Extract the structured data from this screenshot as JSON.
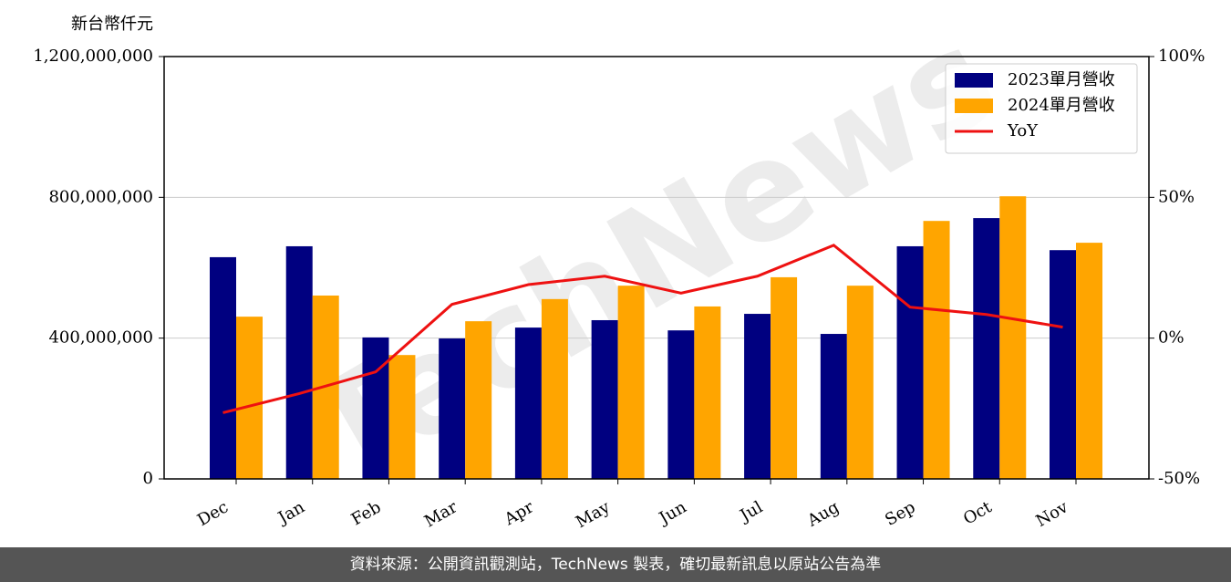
{
  "chart_data": {
    "type": "bar-line",
    "y_label": "新台幣仟元",
    "watermark": "TechNews",
    "footer": "資料來源：公開資訊觀測站，TechNews 製表，確切最新訊息以原站公告為準",
    "categories": [
      "Dec",
      "Jan",
      "Feb",
      "Mar",
      "Apr",
      "May",
      "Jun",
      "Jul",
      "Aug",
      "Sep",
      "Oct",
      "Nov"
    ],
    "series": [
      {
        "name": "2023單月營收",
        "color": "#000080",
        "values": [
          630000000,
          661000000,
          402000000,
          399000000,
          430000000,
          451000000,
          422000000,
          469000000,
          412000000,
          661000000,
          741000000,
          650000000
        ]
      },
      {
        "name": "2024單月營收",
        "color": "#ffa500",
        "values": [
          461000000,
          521000000,
          352000000,
          448000000,
          511000000,
          549000000,
          490000000,
          573000000,
          549000000,
          733000000,
          803000000,
          671000000
        ]
      },
      {
        "name": "YoY",
        "color": "#ee1111",
        "axis": "y2",
        "values": [
          -26.5,
          -19.7,
          -12,
          12,
          19,
          22,
          16,
          22,
          33,
          11,
          8.4,
          3.9
        ]
      }
    ],
    "ylim": [
      0,
      1200000000
    ],
    "yticks": [
      0,
      {
        "value": 400000000,
        "label": "400,000,000"
      },
      {
        "value": 800000000,
        "label": "800,000,000"
      },
      {
        "value": 1200000000,
        "label": "1,200,000,000"
      }
    ],
    "y2lim": [
      -50,
      100
    ],
    "y2ticks": [
      {
        "value": -50,
        "label": "-50%"
      },
      {
        "value": 0,
        "label": "0%"
      },
      {
        "value": 50,
        "label": "50%"
      },
      {
        "value": 100,
        "label": "100%"
      }
    ],
    "grid": true,
    "legend": "upper right"
  }
}
